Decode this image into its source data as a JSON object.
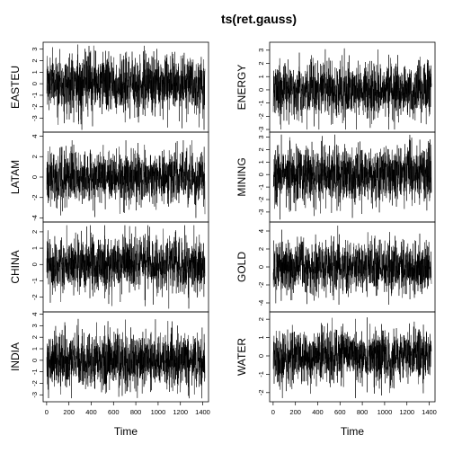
{
  "chart_data": {
    "type": "line",
    "title": "ts(ret.gauss)",
    "xlabel": "Time",
    "x_range": [
      1,
      1420
    ],
    "x_ticks": [
      0,
      200,
      400,
      600,
      800,
      1000,
      1200,
      1400
    ],
    "n_points": 1420,
    "series": [
      {
        "name": "EASTEU",
        "column": 0,
        "row": 0,
        "ylim": [
          -4.2,
          3.6
        ],
        "y_ticks": [
          -3,
          -2,
          -1,
          0,
          1,
          2,
          3
        ],
        "approx_min": -4.0,
        "approx_max": 3.4
      },
      {
        "name": "LATAM",
        "column": 0,
        "row": 1,
        "ylim": [
          -4.4,
          4.4
        ],
        "y_ticks": [
          -4,
          -2,
          0,
          2,
          4
        ],
        "approx_min": -4.0,
        "approx_max": 3.6
      },
      {
        "name": "CHINA",
        "column": 0,
        "row": 2,
        "ylim": [
          -2.9,
          2.6
        ],
        "y_ticks": [
          -2,
          -1,
          0,
          1,
          2
        ],
        "approx_min": -2.7,
        "approx_max": 2.4
      },
      {
        "name": "INDIA",
        "column": 0,
        "row": 3,
        "ylim": [
          -3.6,
          4.2
        ],
        "y_ticks": [
          -3,
          -2,
          -1,
          0,
          1,
          2,
          3,
          4
        ],
        "approx_min": -3.3,
        "approx_max": 3.8
      },
      {
        "name": "ENERGY",
        "column": 1,
        "row": 0,
        "ylim": [
          -3.2,
          3.6
        ],
        "y_ticks": [
          -3,
          -2,
          -1,
          0,
          1,
          2,
          3
        ],
        "approx_min": -3.0,
        "approx_max": 3.3
      },
      {
        "name": "MINING",
        "column": 1,
        "row": 1,
        "ylim": [
          -3.8,
          3.4
        ],
        "y_ticks": [
          -3,
          -2,
          -1,
          0,
          1,
          2,
          3
        ],
        "approx_min": -3.6,
        "approx_max": 3.2
      },
      {
        "name": "GOLD",
        "column": 1,
        "row": 2,
        "ylim": [
          -5.0,
          5.0
        ],
        "y_ticks": [
          -4,
          -2,
          0,
          2,
          4
        ],
        "approx_min": -4.2,
        "approx_max": 4.6
      },
      {
        "name": "WATER",
        "column": 1,
        "row": 3,
        "ylim": [
          -2.5,
          2.4
        ],
        "y_ticks": [
          -2,
          -1,
          0,
          1,
          2
        ],
        "approx_min": -2.3,
        "approx_max": 2.1
      }
    ]
  }
}
